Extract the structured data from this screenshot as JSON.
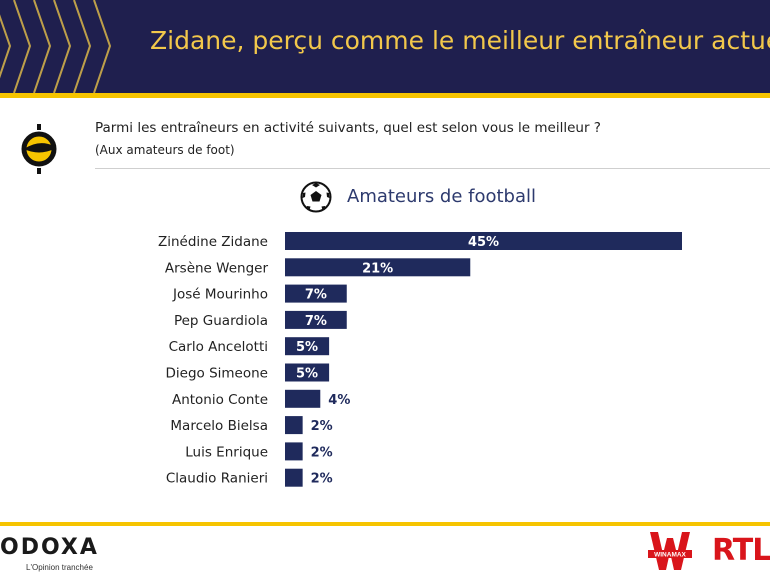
{
  "header": {
    "title": "Zidane, perçu comme le meilleur entraîneur actuel"
  },
  "question": {
    "text": "Parmi les entraîneurs en activité suivants, quel est selon vous le meilleur ?",
    "subtext": "(Aux amateurs de foot)"
  },
  "section": {
    "title": "Amateurs de football",
    "icon": "soccer-ball-icon"
  },
  "colors": {
    "navy": "#1f2a5c",
    "gold": "#f6c400",
    "header_bg": "#1f1f4e",
    "title_gold": "#f2c84b"
  },
  "chart_data": {
    "type": "bar",
    "orientation": "horizontal",
    "categories": [
      "Zinédine Zidane",
      "Arsène Wenger",
      "José Mourinho",
      "Pep Guardiola",
      "Carlo Ancelotti",
      "Diego Simeone",
      "Antonio Conte",
      "Marcelo Bielsa",
      "Luis Enrique",
      "Claudio Ranieri"
    ],
    "values": [
      45,
      21,
      7,
      7,
      5,
      5,
      4,
      2,
      2,
      2
    ],
    "labels": [
      "45%",
      "21%",
      "7%",
      "7%",
      "5%",
      "5%",
      "4%",
      "2%",
      "2%",
      "2%"
    ],
    "title": "Amateurs de football",
    "xlim": [
      0,
      45
    ]
  },
  "footer": {
    "brand": "ODOXA",
    "tagline": "L'Opinion tranchée",
    "partner1": "WINAMAX",
    "partner2": "RTL"
  }
}
